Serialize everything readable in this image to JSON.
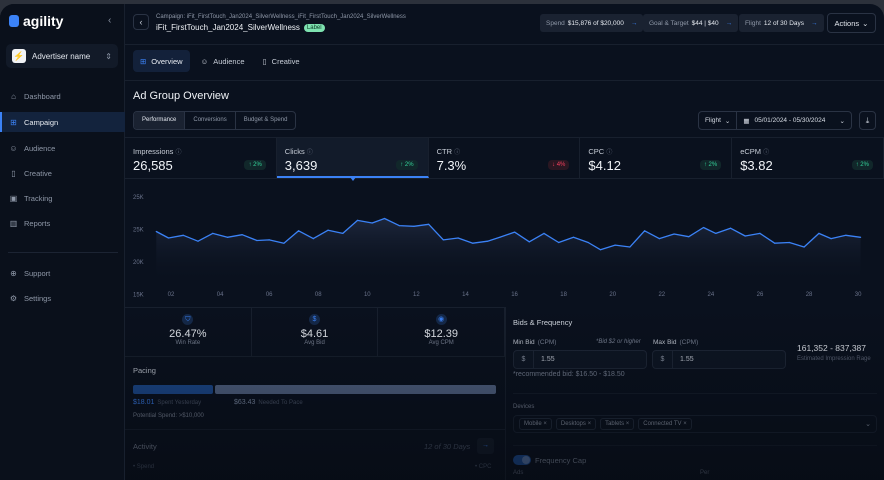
{
  "sidebar": {
    "brand": "agility",
    "advertiser": "Advertiser name",
    "items": [
      {
        "label": "Dashboard",
        "icon": "home-icon"
      },
      {
        "label": "Campaign",
        "icon": "grid-icon",
        "active": true
      },
      {
        "label": "Audience",
        "icon": "users-icon"
      },
      {
        "label": "Creative",
        "icon": "creative-icon"
      },
      {
        "label": "Tracking",
        "icon": "tracking-icon"
      },
      {
        "label": "Reports",
        "icon": "bar-chart-icon"
      }
    ],
    "footer": [
      {
        "label": "Support",
        "icon": "globe-icon"
      },
      {
        "label": "Settings",
        "icon": "gear-icon"
      }
    ]
  },
  "header": {
    "breadcrumb": "Campaign: iFit_FirstTouch_Jan2024_SilverWellness_iFit_FirstTouch_Jan2024_SilverWellness",
    "title": "iFit_FirstTouch_Jan2024_SilverWellness",
    "badge": "Label",
    "spend_label": "Spend",
    "spend_value": "$15,876 of $20,000",
    "goal_label": "Goal & Target",
    "goal_value": "$44 | $40",
    "flight_label": "Flight",
    "flight_value": "12 of 30 Days",
    "actions": "Actions"
  },
  "tabs": [
    "Overview",
    "Audience",
    "Creative"
  ],
  "overview": {
    "title": "Ad Group Overview",
    "segments": [
      "Performance",
      "Conversions",
      "Budget & Spend"
    ],
    "flight_select": "Flight",
    "date_range": "05/01/2024 - 05/30/2024"
  },
  "metrics": [
    {
      "label": "Impressions",
      "value": "26,585",
      "change": "↑ 2%",
      "trend": "up"
    },
    {
      "label": "Clicks",
      "value": "3,639",
      "change": "↑ 2%",
      "trend": "up",
      "active": true
    },
    {
      "label": "CTR",
      "value": "7.3%",
      "change": "↓ 4%",
      "trend": "down"
    },
    {
      "label": "CPC",
      "value": "$4.12",
      "change": "↑ 2%",
      "trend": "up"
    },
    {
      "label": "eCPM",
      "value": "$3.82",
      "change": "↑ 2%",
      "trend": "up"
    }
  ],
  "chart_data": {
    "type": "area",
    "ylim": [
      15,
      30
    ],
    "y_ticks": [
      "25K",
      "25K",
      "20K",
      "15K"
    ],
    "x_ticks": [
      "02",
      "04",
      "06",
      "08",
      "10",
      "12",
      "14",
      "16",
      "18",
      "20",
      "22",
      "24",
      "26",
      "28",
      "30"
    ],
    "grid": false,
    "color": "#3b82f6",
    "x": [
      1.4,
      1.9,
      2.5,
      3.1,
      3.7,
      4.3,
      4.9,
      5.5,
      6.0,
      6.6,
      7.2,
      7.8,
      8.4,
      9.0,
      9.6,
      10.2,
      10.7,
      11.3,
      11.9,
      12.5,
      13.1,
      13.7,
      14.3,
      14.9,
      15.4,
      16.0,
      16.6,
      17.2,
      17.8,
      18.4,
      19.0,
      19.5,
      20.1,
      20.7,
      21.3,
      21.9,
      22.5,
      23.1,
      23.7,
      24.2,
      24.8,
      25.4,
      26.0,
      26.6,
      27.2,
      27.8,
      28.4,
      28.9,
      29.5,
      30.1
    ],
    "values": [
      24.7,
      23.7,
      24.1,
      23.2,
      24.4,
      23.8,
      24.2,
      23.3,
      23.4,
      22.9,
      24.8,
      23.6,
      24.9,
      24.4,
      26.4,
      26.0,
      26.7,
      25.6,
      25.5,
      25.8,
      23.4,
      23.7,
      22.9,
      23.2,
      23.8,
      24.6,
      23.1,
      24.4,
      23.0,
      23.8,
      23.0,
      21.9,
      22.6,
      22.3,
      24.8,
      23.6,
      24.3,
      23.9,
      25.3,
      24.4,
      25.2,
      24.0,
      24.4,
      22.9,
      23.0,
      22.3,
      24.4,
      23.6,
      24.1,
      23.8
    ]
  },
  "stats": [
    {
      "value": "26.47%",
      "label": "Win Rate",
      "icon": "shield-icon"
    },
    {
      "value": "$4.61",
      "label": "Avg Bid",
      "icon": "dollar-icon"
    },
    {
      "value": "$12.39",
      "label": "Avg CPM",
      "icon": "eye-icon"
    }
  ],
  "pacing": {
    "title": "Pacing",
    "spent": "$18.01",
    "spent_label": "Spent Yesterday",
    "needed": "$63.43",
    "needed_label": "Needed To Pace",
    "potential": "Potential Spend: >$10,000",
    "spent_fraction": 0.22
  },
  "activity": {
    "title": "Activity",
    "days": "12 of 30 Days",
    "legend_left": "• Spend",
    "legend_right": "• CPC"
  },
  "bids": {
    "title": "Bids & Frequency",
    "min_label": "Min Bid",
    "max_label": "Max Bid",
    "unit": "(CPM)",
    "note": "*Bid $2 or higher",
    "min_value": "1.55",
    "max_value": "1.55",
    "recommended": "*recommended bid: $16.50 - $18.50",
    "range": "161,352 - 837,387",
    "range_label": "Estimated Impression Rage",
    "devices_label": "Devices",
    "devices": [
      "Mobile",
      "Desktops",
      "Tablets",
      "Connected TV"
    ],
    "freq_label": "Frequency Cap",
    "freq_on": true,
    "ads_label": "Ads",
    "per_label": "Per"
  }
}
